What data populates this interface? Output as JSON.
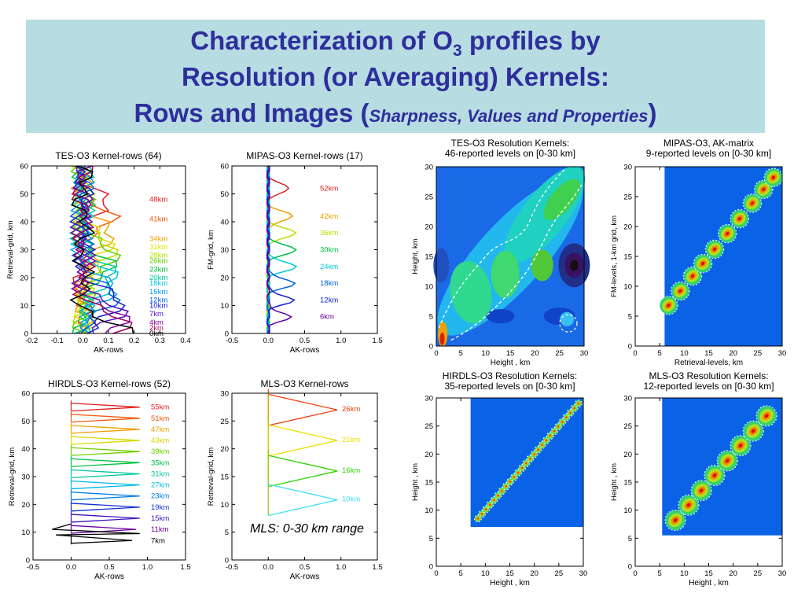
{
  "slide": {
    "title_line1_pre": "Characterization of O",
    "title_sub": "3",
    "title_line1_post": " profiles by",
    "title_line2": "Resolution (or Averaging) Kernels:",
    "title_line3_pre": "Rows and Images (",
    "title_line3_italic": "Sharpness, Values  and Properties",
    "title_line3_post": ")",
    "mls_note": "MLS: 0-30 km range",
    "colors": {
      "title": "#2e2e9c",
      "title_bg": "#b7dde3",
      "kernel_background": "#0a62e6"
    }
  },
  "chart_data": [
    {
      "id": "tes-rows",
      "type": "line",
      "title": "TES-O3 Kernel-rows (64)",
      "xlabel": "AK-rows",
      "ylabel": "Retrieval-grid, km",
      "xlim": [
        -0.2,
        0.4
      ],
      "ylim": [
        0,
        60
      ],
      "xticks": [
        "-0.2",
        "-0.1",
        "0.0",
        "0.1",
        "0.2",
        "0.3",
        "0.4"
      ],
      "yticks": [
        "0",
        "10",
        "20",
        "30",
        "40",
        "50",
        "60"
      ],
      "series": [
        {
          "name": "48km",
          "peak": 48,
          "amp": 0.09,
          "color": "#e02020"
        },
        {
          "name": "41km",
          "peak": 41,
          "amp": 0.1,
          "color": "#f05a0a"
        },
        {
          "name": "34km",
          "peak": 34,
          "amp": 0.11,
          "color": "#f0a000"
        },
        {
          "name": "31km",
          "peak": 31,
          "amp": 0.11,
          "color": "#e8e000"
        },
        {
          "name": "28km",
          "peak": 28,
          "amp": 0.12,
          "color": "#b8e000"
        },
        {
          "name": "26km",
          "peak": 26,
          "amp": 0.12,
          "color": "#60d000"
        },
        {
          "name": "23km",
          "peak": 23,
          "amp": 0.12,
          "color": "#00c040"
        },
        {
          "name": "20km",
          "peak": 20,
          "amp": 0.12,
          "color": "#00c8a0"
        },
        {
          "name": "18km",
          "peak": 18,
          "amp": 0.12,
          "color": "#00c8d8"
        },
        {
          "name": "15km",
          "peak": 15,
          "amp": 0.13,
          "color": "#00a0e8"
        },
        {
          "name": "12km",
          "peak": 12,
          "amp": 0.13,
          "color": "#0060e0"
        },
        {
          "name": "10km",
          "peak": 10,
          "amp": 0.14,
          "color": "#1020d0"
        },
        {
          "name": "7km",
          "peak": 7,
          "amp": 0.15,
          "color": "#5010c0"
        },
        {
          "name": "4km",
          "peak": 4,
          "amp": 0.16,
          "color": "#8000a0"
        },
        {
          "name": "2km",
          "peak": 2,
          "amp": 0.16,
          "color": "#a00060"
        },
        {
          "name": "0km",
          "peak": 0,
          "amp": 0.17,
          "color": "#000000"
        }
      ]
    },
    {
      "id": "mipas-rows",
      "type": "line",
      "title": "MIPAS-O3 Kernel-rows (17)",
      "xlabel": "AK-rows",
      "ylabel": "FM-grid, km",
      "xlim": [
        -0.5,
        1.5
      ],
      "ylim": [
        0,
        60
      ],
      "xticks": [
        "-0.5",
        "0.0",
        "0.5",
        "1.0",
        "1.5"
      ],
      "yticks": [
        "0",
        "10",
        "20",
        "30",
        "40",
        "50",
        "60"
      ],
      "series": [
        {
          "name": "52km",
          "peak": 52,
          "amp": 0.3,
          "color": "#e02020"
        },
        {
          "name": "42km",
          "peak": 42,
          "amp": 0.35,
          "color": "#f0a000"
        },
        {
          "name": "36km",
          "peak": 36,
          "amp": 0.4,
          "color": "#b8e000"
        },
        {
          "name": "30km",
          "peak": 30,
          "amp": 0.4,
          "color": "#00c040"
        },
        {
          "name": "24km",
          "peak": 24,
          "amp": 0.4,
          "color": "#00c8d8"
        },
        {
          "name": "18km",
          "peak": 18,
          "amp": 0.37,
          "color": "#0060e0"
        },
        {
          "name": "12km",
          "peak": 12,
          "amp": 0.35,
          "color": "#1020d0"
        },
        {
          "name": "6km",
          "peak": 6,
          "amp": 0.3,
          "color": "#6000a0"
        }
      ]
    },
    {
      "id": "hirdls-rows",
      "type": "line",
      "title": "HIRDLS-O3 Kernel-rows (52)",
      "xlabel": "AK-rows",
      "ylabel": "Retrieval-grid, km",
      "xlim": [
        -0.5,
        1.5
      ],
      "ylim": [
        0,
        60
      ],
      "xticks": [
        "-0.5",
        "0.0",
        "0.5",
        "1.0",
        "1.5"
      ],
      "yticks": [
        "0",
        "10",
        "20",
        "30",
        "40",
        "50",
        "60"
      ],
      "series": [
        {
          "name": "55km",
          "peak": 55,
          "amp": 0.9,
          "color": "#e02020"
        },
        {
          "name": "51km",
          "peak": 51,
          "amp": 0.9,
          "color": "#f05a0a"
        },
        {
          "name": "47km",
          "peak": 47,
          "amp": 0.9,
          "color": "#f0a000"
        },
        {
          "name": "43km",
          "peak": 43,
          "amp": 0.9,
          "color": "#d8d800"
        },
        {
          "name": "39km",
          "peak": 39,
          "amp": 0.9,
          "color": "#70d000"
        },
        {
          "name": "35km",
          "peak": 35,
          "amp": 0.9,
          "color": "#00c040"
        },
        {
          "name": "31km",
          "peak": 31,
          "amp": 0.9,
          "color": "#00c8a0"
        },
        {
          "name": "27km",
          "peak": 27,
          "amp": 0.9,
          "color": "#00b8e0"
        },
        {
          "name": "23km",
          "peak": 23,
          "amp": 0.9,
          "color": "#0078e0"
        },
        {
          "name": "19km",
          "peak": 19,
          "amp": 0.9,
          "color": "#1030d0"
        },
        {
          "name": "15km",
          "peak": 15,
          "amp": 0.9,
          "color": "#4010c0"
        },
        {
          "name": "11km",
          "peak": 11,
          "amp": 0.85,
          "color": "#7000a0"
        },
        {
          "name": "7km",
          "peak": 7,
          "amp": 0.8,
          "color": "#000000"
        }
      ]
    },
    {
      "id": "mls-rows",
      "type": "line",
      "title": "MLS-O3 Kernel-rows",
      "xlabel": "AK-rows",
      "ylabel": "Retrieval-grid, km",
      "xlim": [
        -0.5,
        1.5
      ],
      "ylim": [
        0,
        30
      ],
      "xticks": [
        "-0.5",
        "0.0",
        "0.5",
        "1.0",
        "1.5"
      ],
      "yticks": [
        "0",
        "5",
        "10",
        "15",
        "20",
        "25",
        "30"
      ],
      "series": [
        {
          "name": "26km",
          "peak": 27,
          "amp": 0.95,
          "color": "#f04010"
        },
        {
          "name": "21km",
          "peak": 21.5,
          "amp": 0.95,
          "color": "#e8e000"
        },
        {
          "name": "16km",
          "peak": 16,
          "amp": 0.95,
          "color": "#30d000"
        },
        {
          "name": "10km",
          "peak": 10.8,
          "amp": 0.95,
          "color": "#40e0f0"
        }
      ]
    },
    {
      "id": "tes-kernels",
      "type": "heatmap",
      "title": "TES-O3 Resolution Kernels:",
      "subtitle": "46-reported levels on [0-30 km]",
      "xlabel": "Height , km",
      "ylabel": "Height, km",
      "xlim": [
        0,
        30
      ],
      "ylim": [
        0,
        30
      ],
      "xticks": [
        "0",
        "5",
        "10",
        "15",
        "20",
        "25",
        "30"
      ],
      "yticks": [
        "0",
        "5",
        "10",
        "15",
        "20",
        "25",
        "30"
      ]
    },
    {
      "id": "mipas-kernels",
      "type": "heatmap",
      "title": "MIPAS-O3, AK-matrix",
      "subtitle": "9-reported levels on [0-30 km]",
      "xlabel": "Retrieval-levels, km",
      "ylabel": "FM-levels, 1-km grid, km",
      "xlim": [
        0,
        30
      ],
      "ylim": [
        0,
        30
      ],
      "xticks": [
        "0",
        "5",
        "10",
        "15",
        "20",
        "25",
        "30"
      ],
      "yticks": [
        "0",
        "5",
        "10",
        "15",
        "20",
        "25",
        "30"
      ]
    },
    {
      "id": "hirdls-kernels",
      "type": "heatmap",
      "title": "HIRDLS-O3 Resolution Kernels:",
      "subtitle": "35-reported levels on [0-30 km]",
      "xlabel": "Height , km",
      "ylabel": "Height , km",
      "xlim": [
        0,
        30
      ],
      "ylim": [
        0,
        30
      ],
      "xticks": [
        "0",
        "5",
        "10",
        "15",
        "20",
        "25",
        "30"
      ],
      "yticks": [
        "0",
        "5",
        "10",
        "15",
        "20",
        "25",
        "30"
      ]
    },
    {
      "id": "mls-kernels",
      "type": "heatmap",
      "title": "MLS-O3 Resolution Kernels:",
      "subtitle": "12-reported levels on [0-30 km]",
      "xlabel": "Height , km",
      "ylabel": "Height , km",
      "xlim": [
        0,
        30
      ],
      "ylim": [
        0,
        30
      ],
      "xticks": [
        "0",
        "5",
        "10",
        "15",
        "20",
        "25",
        "30"
      ],
      "yticks": [
        "0",
        "5",
        "10",
        "15",
        "20",
        "25",
        "30"
      ]
    }
  ]
}
